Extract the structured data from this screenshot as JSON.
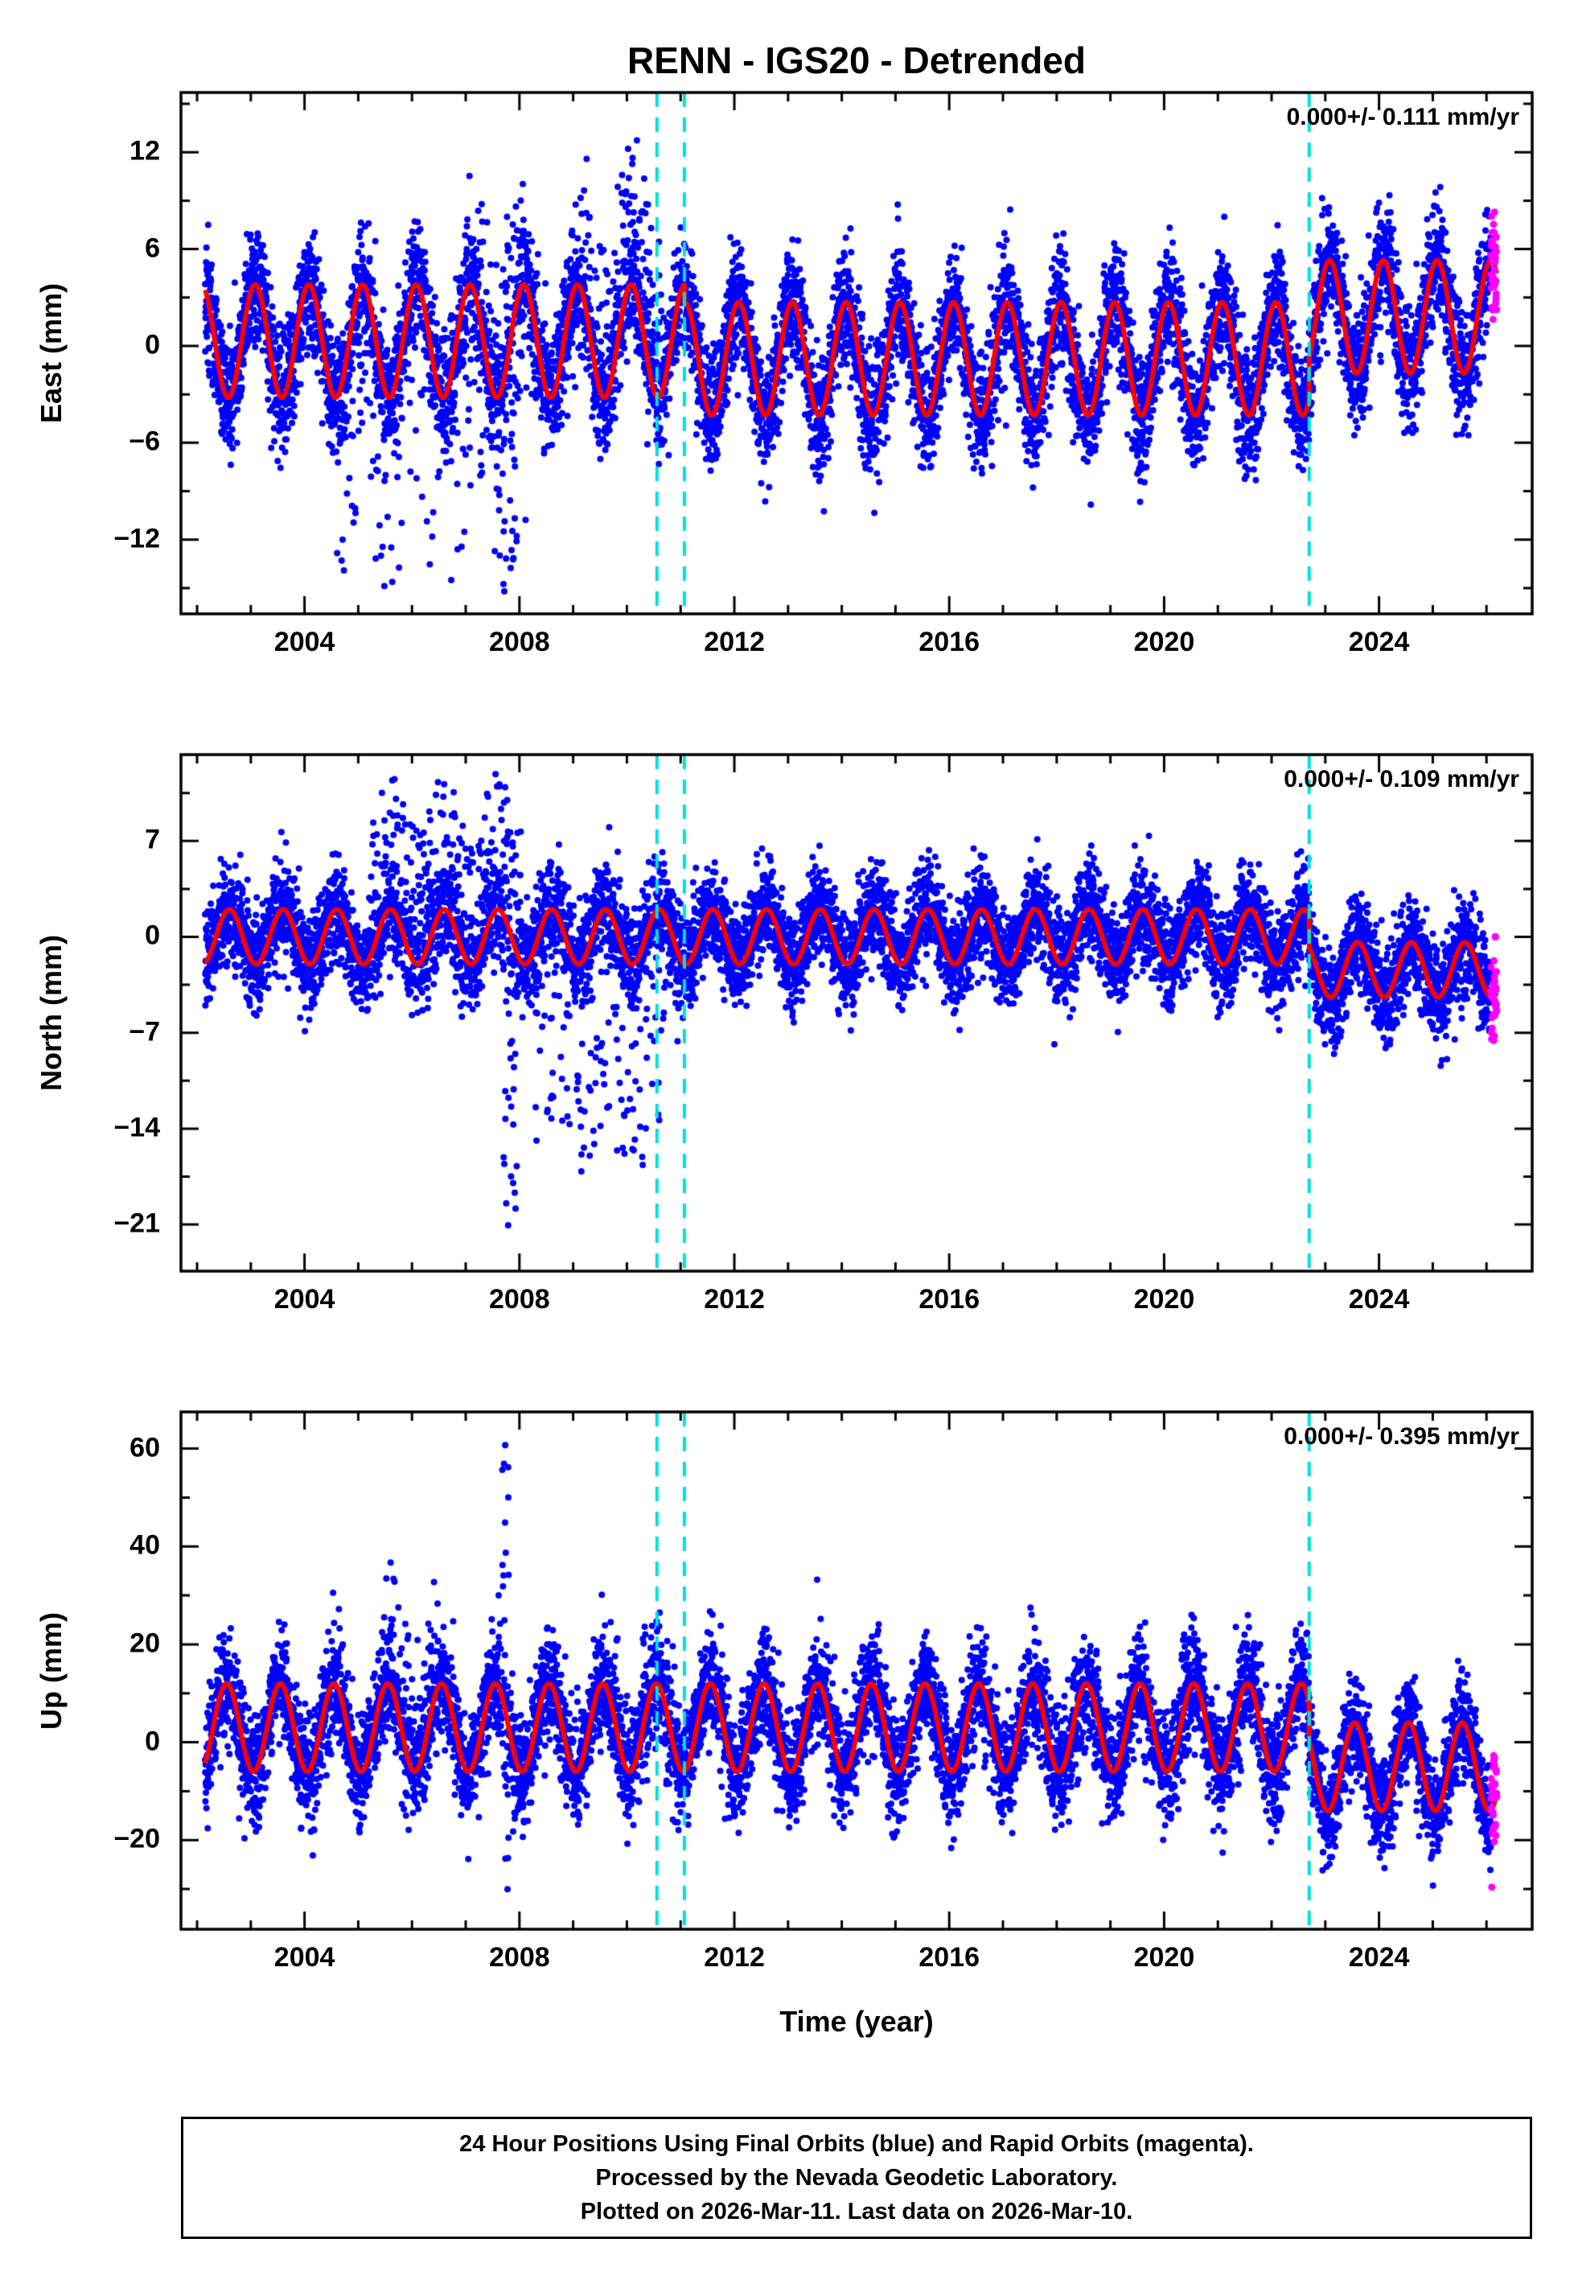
{
  "title": "RENN - IGS20 - Detrended",
  "xlabel": "Time (year)",
  "footer": {
    "lines": [
      "24 Hour Positions Using Final Orbits (blue) and Rapid Orbits (magenta).",
      "Processed by the Nevada Geodetic Laboratory.",
      "Plotted on 2026-Mar-11. Last data on 2026-Mar-10."
    ]
  },
  "colors": {
    "final_orbits": "#0000ff",
    "rapid_orbits": "#ff00ff",
    "model_curve": "#ff0000",
    "event_line": "#00e0e0",
    "frame": "#000000",
    "background": "#ffffff"
  },
  "chart_data": {
    "type": "scatter",
    "x_range": [
      2001.7,
      2026.85
    ],
    "x_ticks": [
      2004,
      2008,
      2012,
      2016,
      2020,
      2024
    ],
    "x_minor_step": 1,
    "data_start": 2002.15,
    "data_end": 2026.19,
    "rapid_orbit_start": 2026.08,
    "sample_interval_years": 0.003,
    "event_lines_x": [
      2010.56,
      2011.07,
      2022.7
    ],
    "legend": {
      "blue_points": "24 hour positions, final orbits",
      "magenta_points": "24 hour positions, rapid orbits",
      "red_curve": "Detrended seasonal model",
      "cyan_dashed_lines": "Step / event epochs"
    },
    "panels": [
      {
        "id": "east",
        "seed": 101,
        "ylabel": "East (mm)",
        "annotation": "0.000+/- 0.111 mm/yr",
        "rate_mm_yr": 0.0,
        "rate_sigma_mm_yr": 0.111,
        "ylim": [
          -16.6,
          15.7
        ],
        "yticks": [
          -12,
          -6,
          0,
          6,
          12
        ],
        "y_minor_step": 3,
        "seasonal": {
          "amplitude": 3.5,
          "phase": 0.08
        },
        "offsets": [
          {
            "start": 2001.7,
            "value": 0.3
          },
          {
            "start": 2011.07,
            "value": -0.8
          },
          {
            "start": 2022.7,
            "value": 1.8
          }
        ],
        "noise_sigma": 1.9,
        "outlier_windows": [
          {
            "start": 2004.6,
            "end": 2006.9,
            "prob": 0.1,
            "min": -14,
            "max": -3
          },
          {
            "start": 2006.9,
            "end": 2008.15,
            "prob": 0.18,
            "min": -15,
            "max": 9
          },
          {
            "start": 2007.7,
            "end": 2007.97,
            "prob": 0.55,
            "min": -15,
            "max": 10
          },
          {
            "start": 2009.2,
            "end": 2010.65,
            "prob": 0.15,
            "min": 3,
            "max": 10
          }
        ]
      },
      {
        "id": "north",
        "seed": 202,
        "ylabel": "North (mm)",
        "annotation": "0.000+/- 0.109 mm/yr",
        "rate_mm_yr": 0.0,
        "rate_sigma_mm_yr": 0.109,
        "ylim": [
          -24.4,
          13.3
        ],
        "yticks": [
          -21,
          -14,
          -7,
          0,
          7
        ],
        "y_minor_step": 3.5,
        "seasonal": {
          "amplitude": 2.0,
          "phase": 0.6
        },
        "offsets": [
          {
            "start": 2001.7,
            "value": 0.0
          },
          {
            "start": 2022.7,
            "value": -2.4
          }
        ],
        "noise_sigma": 1.8,
        "outlier_windows": [
          {
            "start": 2005.2,
            "end": 2008.05,
            "prob": 0.16,
            "min": 3,
            "max": 10
          },
          {
            "start": 2007.7,
            "end": 2007.95,
            "prob": 0.3,
            "min": -22,
            "max": -6
          },
          {
            "start": 2008.3,
            "end": 2010.7,
            "prob": 0.14,
            "min": -16,
            "max": -4
          }
        ]
      },
      {
        "id": "up",
        "seed": 303,
        "ylabel": "Up (mm)",
        "annotation": "0.000+/- 0.395 mm/yr",
        "rate_mm_yr": 0.0,
        "rate_sigma_mm_yr": 0.395,
        "ylim": [
          -38.2,
          67.5
        ],
        "yticks": [
          -20,
          0,
          20,
          40,
          60
        ],
        "y_minor_step": 10,
        "seasonal": {
          "amplitude": 9.0,
          "phase": 0.55
        },
        "offsets": [
          {
            "start": 2001.7,
            "value": 3.0
          },
          {
            "start": 2022.7,
            "value": -5.0
          }
        ],
        "noise_sigma": 5.5,
        "outlier_windows": [
          {
            "start": 2007.68,
            "end": 2007.8,
            "prob": 0.7,
            "min": -35,
            "max": 55
          },
          {
            "start": 2005.4,
            "end": 2006.6,
            "prob": 0.06,
            "min": 12,
            "max": 28
          },
          {
            "start": 2009.6,
            "end": 2010.9,
            "prob": 0.05,
            "min": 8,
            "max": 20
          }
        ]
      }
    ]
  }
}
